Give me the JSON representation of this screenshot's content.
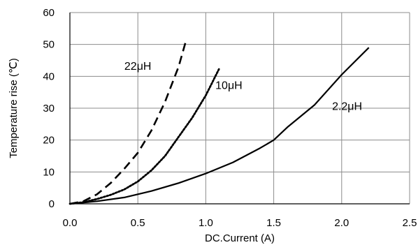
{
  "chart_data": {
    "type": "line",
    "title": "",
    "xlabel": "DC.Current (A)",
    "ylabel": "Temperature rise (℃)",
    "xlim": [
      0,
      2.5
    ],
    "ylim": [
      0,
      60
    ],
    "xticks": [
      "0.0",
      "0.5",
      "1.0",
      "1.5",
      "2.0",
      "2.5"
    ],
    "yticks": [
      "0",
      "10",
      "20",
      "30",
      "40",
      "50",
      "60"
    ],
    "grid": true,
    "series": [
      {
        "name": "22μH",
        "style": "dashed",
        "x": [
          0,
          0.1,
          0.2,
          0.3,
          0.4,
          0.5,
          0.6,
          0.7,
          0.8,
          0.85
        ],
        "y": [
          0,
          0.8,
          3,
          6.5,
          11,
          16,
          23,
          32,
          43,
          50.5
        ]
      },
      {
        "name": "10μH",
        "style": "dotted",
        "x": [
          0,
          0.1,
          0.2,
          0.3,
          0.4,
          0.5,
          0.6,
          0.7,
          0.8,
          0.9,
          1.0,
          1.1
        ],
        "y": [
          0,
          0.5,
          1.5,
          2.8,
          4.5,
          7,
          10.5,
          15,
          21,
          27,
          34,
          42.5
        ]
      },
      {
        "name": "2.2μH",
        "style": "solid",
        "x": [
          0,
          0.2,
          0.4,
          0.6,
          0.8,
          1.0,
          1.2,
          1.4,
          1.5,
          1.6,
          1.8,
          2.0,
          2.2
        ],
        "y": [
          0,
          0.8,
          2,
          4,
          6.5,
          9.5,
          13,
          17.5,
          20,
          24,
          31,
          40.5,
          49
        ]
      }
    ],
    "labels": [
      {
        "text": "22μH",
        "x": 0.5,
        "y": 42
      },
      {
        "text": "10μH",
        "x": 1.17,
        "y": 36
      },
      {
        "text": "2.2μH",
        "x": 2.04,
        "y": 29.5
      }
    ]
  }
}
